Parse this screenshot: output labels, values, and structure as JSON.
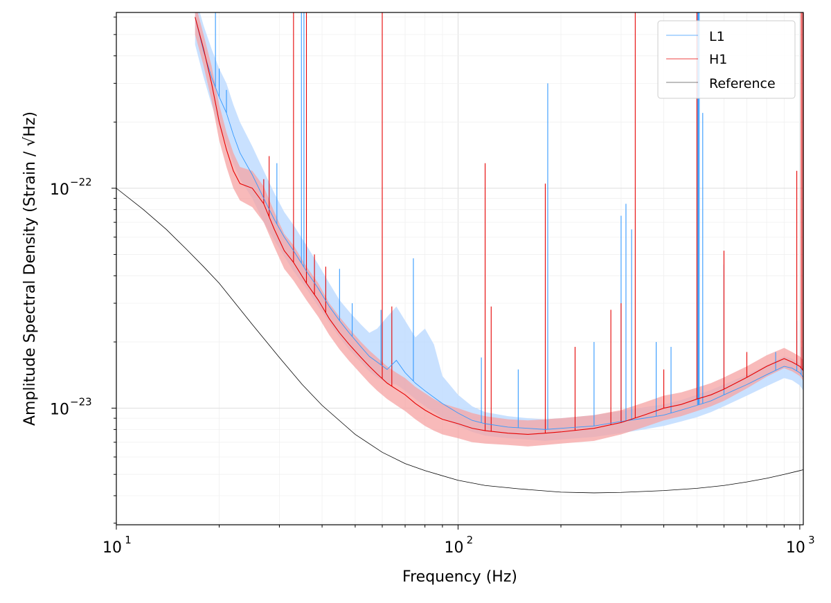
{
  "chart_data": {
    "type": "line",
    "xlabel": "Frequency (Hz)",
    "ylabel": "Amplitude Spectral Density (Strain / √Hz)",
    "xscale": "log",
    "yscale": "log",
    "xlim": [
      10,
      1024
    ],
    "ylim": [
      2.95e-24,
      6.3e-22
    ],
    "grid": true,
    "legend_position": "top-right",
    "x_ticks": [
      {
        "value": 10,
        "base": "10",
        "exp": "1"
      },
      {
        "value": 100,
        "base": "10",
        "exp": "2"
      },
      {
        "value": 1000,
        "base": "10",
        "exp": "3"
      }
    ],
    "y_ticks": [
      {
        "value": 1e-23,
        "base": "10",
        "exp": "−23"
      },
      {
        "value": 1e-22,
        "base": "10",
        "exp": "−22"
      }
    ],
    "series": [
      {
        "name": "L1",
        "color": "#3399ff",
        "band_color": "#bfdcff",
        "x": [
          17,
          18,
          19,
          20,
          21,
          22,
          23,
          25,
          27,
          29,
          31,
          33,
          36,
          39,
          42,
          45,
          48,
          52,
          55,
          58,
          62,
          66,
          70,
          75,
          80,
          85,
          90,
          100,
          110,
          120,
          140,
          160,
          180,
          200,
          250,
          300,
          350,
          400,
          450,
          500,
          550,
          600,
          700,
          800,
          900,
          950,
          1000,
          1024
        ],
        "values": [
          6e-22,
          4.2e-22,
          3.2e-22,
          2.6e-22,
          2.2e-22,
          1.75e-22,
          1.45e-22,
          1.15e-22,
          9e-23,
          7.2e-23,
          6e-23,
          5.2e-23,
          4.2e-23,
          3.5e-23,
          2.9e-23,
          2.5e-23,
          2.2e-23,
          1.9e-23,
          1.72e-23,
          1.62e-23,
          1.5e-23,
          1.65e-23,
          1.45e-23,
          1.3e-23,
          1.2e-23,
          1.12e-23,
          1.05e-23,
          9.5e-24,
          8.8e-24,
          8.5e-24,
          8.2e-24,
          8.1e-24,
          8e-24,
          8.1e-24,
          8.3e-24,
          8.7e-24,
          9e-24,
          9.3e-24,
          9.8e-24,
          1.03e-23,
          1.08e-23,
          1.15e-23,
          1.28e-23,
          1.42e-23,
          1.55e-23,
          1.52e-23,
          1.45e-23,
          1.38e-23
        ],
        "band_low": [
          4.5e-22,
          3.2e-22,
          2.4e-22,
          1.9e-22,
          1.6e-22,
          1.3e-22,
          1.1e-22,
          9e-23,
          7e-23,
          5.8e-23,
          4.9e-23,
          4.2e-23,
          3.5e-23,
          2.9e-23,
          2.45e-23,
          2.1e-23,
          1.85e-23,
          1.62e-23,
          1.47e-23,
          1.38e-23,
          1.3e-23,
          1.28e-23,
          1.2e-23,
          1.1e-23,
          1.02e-23,
          9.6e-24,
          9e-24,
          8.3e-24,
          7.8e-24,
          7.5e-24,
          7.3e-24,
          7.2e-24,
          7.1e-24,
          7.2e-24,
          7.4e-24,
          7.7e-24,
          8e-24,
          8.3e-24,
          8.7e-24,
          9.1e-24,
          9.6e-24,
          1.02e-23,
          1.14e-23,
          1.26e-23,
          1.37e-23,
          1.34e-23,
          1.27e-23,
          1.2e-23
        ],
        "band_high": [
          7.5e-22,
          5.5e-22,
          4.3e-22,
          3.5e-22,
          3e-22,
          2.4e-22,
          2e-22,
          1.55e-22,
          1.2e-22,
          9.5e-23,
          7.8e-23,
          6.8e-23,
          5.5e-23,
          4.5e-23,
          3.7e-23,
          3.1e-23,
          2.75e-23,
          2.4e-23,
          2.2e-23,
          2.3e-23,
          2.6e-23,
          2.9e-23,
          2.5e-23,
          2.1e-23,
          2.3e-23,
          1.95e-23,
          1.4e-23,
          1.15e-23,
          1.02e-23,
          9.6e-24,
          9.2e-24,
          9e-24,
          8.9e-24,
          9e-24,
          9.3e-24,
          9.7e-24,
          1.01e-23,
          1.04e-23,
          1.09e-23,
          1.15e-23,
          1.21e-23,
          1.28e-23,
          1.42e-23,
          1.57e-23,
          1.72e-23,
          1.68e-23,
          1.6e-23,
          1.52e-23
        ],
        "peaks": [
          [
            19.5,
            6.3e-22
          ],
          [
            20,
            3.5e-22
          ],
          [
            21,
            2.8e-22
          ],
          [
            29.5,
            1.3e-22
          ],
          [
            34.8,
            6.3e-22
          ],
          [
            35.4,
            6.3e-22
          ],
          [
            45,
            4.3e-23
          ],
          [
            49,
            3e-23
          ],
          [
            59.5,
            2.8e-23
          ],
          [
            74,
            4.8e-23
          ],
          [
            117,
            1.7e-23
          ],
          [
            150,
            1.5e-23
          ],
          [
            183,
            3e-22
          ],
          [
            250,
            2e-23
          ],
          [
            300,
            7.5e-23
          ],
          [
            310,
            8.5e-23
          ],
          [
            322,
            6.5e-23
          ],
          [
            380,
            2e-23
          ],
          [
            420,
            1.9e-23
          ],
          [
            502,
            6.3e-22
          ],
          [
            505,
            6.3e-22
          ],
          [
            508,
            6.3e-22
          ],
          [
            520,
            2.2e-22
          ],
          [
            600,
            4.5e-23
          ],
          [
            850,
            1.8e-23
          ],
          [
            980,
            2.5e-23
          ],
          [
            1010,
            1.9e-23
          ]
        ]
      },
      {
        "name": "H1",
        "color": "#e60000",
        "band_color": "#f5a3a3",
        "x": [
          17,
          18,
          19,
          20,
          21,
          22,
          23,
          25,
          27,
          29,
          31,
          33,
          36,
          39,
          42,
          45,
          48,
          52,
          55,
          58,
          62,
          66,
          70,
          75,
          80,
          85,
          90,
          100,
          110,
          120,
          140,
          160,
          180,
          200,
          250,
          300,
          350,
          400,
          450,
          500,
          550,
          600,
          700,
          800,
          900,
          950,
          1000,
          1024
        ],
        "values": [
          6e-22,
          4.3e-22,
          3e-22,
          2e-22,
          1.5e-22,
          1.2e-22,
          1.05e-22,
          1e-22,
          8.5e-23,
          6.5e-23,
          5.2e-23,
          4.6e-23,
          3.7e-23,
          3.1e-23,
          2.55e-23,
          2.2e-23,
          1.95e-23,
          1.7e-23,
          1.55e-23,
          1.43e-23,
          1.3e-23,
          1.22e-23,
          1.15e-23,
          1.05e-23,
          9.8e-24,
          9.3e-24,
          8.9e-24,
          8.5e-24,
          8.1e-24,
          7.9e-24,
          7.7e-24,
          7.6e-24,
          7.7e-24,
          7.8e-24,
          8.1e-24,
          8.6e-24,
          9.3e-24,
          1e-23,
          1.04e-23,
          1.1e-23,
          1.15e-23,
          1.22e-23,
          1.38e-23,
          1.55e-23,
          1.68e-23,
          1.62e-23,
          1.55e-23,
          1.48e-23
        ],
        "band_low": [
          5e-22,
          3.6e-22,
          2.5e-22,
          1.65e-22,
          1.25e-22,
          1e-22,
          8.8e-23,
          8.2e-23,
          7e-23,
          5.4e-23,
          4.3e-23,
          3.8e-23,
          3.1e-23,
          2.6e-23,
          2.15e-23,
          1.85e-23,
          1.64e-23,
          1.43e-23,
          1.3e-23,
          1.2e-23,
          1.1e-23,
          1.03e-23,
          9.7e-24,
          8.9e-24,
          8.3e-24,
          7.9e-24,
          7.6e-24,
          7.3e-24,
          7e-24,
          6.9e-24,
          6.8e-24,
          6.7e-24,
          6.8e-24,
          6.9e-24,
          7.1e-24,
          7.6e-24,
          8.2e-24,
          8.8e-24,
          9.2e-24,
          9.7e-24,
          1.02e-23,
          1.08e-23,
          1.23e-23,
          1.39e-23,
          1.52e-23,
          1.47e-23,
          1.4e-23,
          1.33e-23
        ],
        "band_high": [
          7e-22,
          5e-22,
          3.6e-22,
          2.4e-22,
          1.8e-22,
          1.45e-22,
          1.25e-22,
          1.2e-22,
          1.02e-22,
          7.8e-23,
          6.2e-23,
          5.5e-23,
          4.4e-23,
          3.7e-23,
          3e-23,
          2.6e-23,
          2.3e-23,
          2e-23,
          1.83e-23,
          1.7e-23,
          1.55e-23,
          1.45e-23,
          1.37e-23,
          1.25e-23,
          1.17e-23,
          1.1e-23,
          1.05e-23,
          1e-23,
          9.5e-24,
          9.2e-24,
          8.9e-24,
          8.8e-24,
          8.9e-24,
          9e-24,
          9.3e-24,
          9.8e-24,
          1.06e-23,
          1.14e-23,
          1.18e-23,
          1.24e-23,
          1.3e-23,
          1.38e-23,
          1.55e-23,
          1.74e-23,
          1.88e-23,
          1.8e-23,
          1.72e-23,
          1.65e-23
        ],
        "peaks": [
          [
            27,
            1.1e-22
          ],
          [
            28,
            1.4e-22
          ],
          [
            33,
            6.3e-22
          ],
          [
            36,
            6.3e-22
          ],
          [
            38,
            5e-23
          ],
          [
            41,
            4.4e-23
          ],
          [
            60,
            6.3e-22
          ],
          [
            64,
            2.9e-23
          ],
          [
            120,
            1.3e-22
          ],
          [
            125,
            2.9e-23
          ],
          [
            180,
            1.05e-22
          ],
          [
            220,
            1.9e-23
          ],
          [
            280,
            2.8e-23
          ],
          [
            300,
            3e-23
          ],
          [
            330,
            6.3e-22
          ],
          [
            400,
            1.5e-23
          ],
          [
            500,
            6.3e-22
          ],
          [
            600,
            5.2e-23
          ],
          [
            700,
            1.8e-23
          ],
          [
            980,
            1.2e-22
          ],
          [
            1010,
            6.3e-22
          ],
          [
            1020,
            6.3e-22
          ]
        ]
      },
      {
        "name": "Reference",
        "color": "#000000",
        "x": [
          10,
          12,
          14,
          16,
          18,
          20,
          25,
          30,
          35,
          40,
          50,
          60,
          70,
          80,
          100,
          120,
          150,
          200,
          250,
          300,
          400,
          500,
          600,
          700,
          800,
          900,
          1000,
          1024
        ],
        "values": [
          1e-22,
          8e-23,
          6.5e-23,
          5.3e-23,
          4.4e-23,
          3.7e-23,
          2.4e-23,
          1.7e-23,
          1.28e-23,
          1.03e-23,
          7.6e-24,
          6.3e-24,
          5.6e-24,
          5.2e-24,
          4.7e-24,
          4.45e-24,
          4.3e-24,
          4.15e-24,
          4.12e-24,
          4.14e-24,
          4.22e-24,
          4.32e-24,
          4.45e-24,
          4.62e-24,
          4.8e-24,
          5e-24,
          5.2e-24,
          5.25e-24
        ]
      }
    ]
  }
}
